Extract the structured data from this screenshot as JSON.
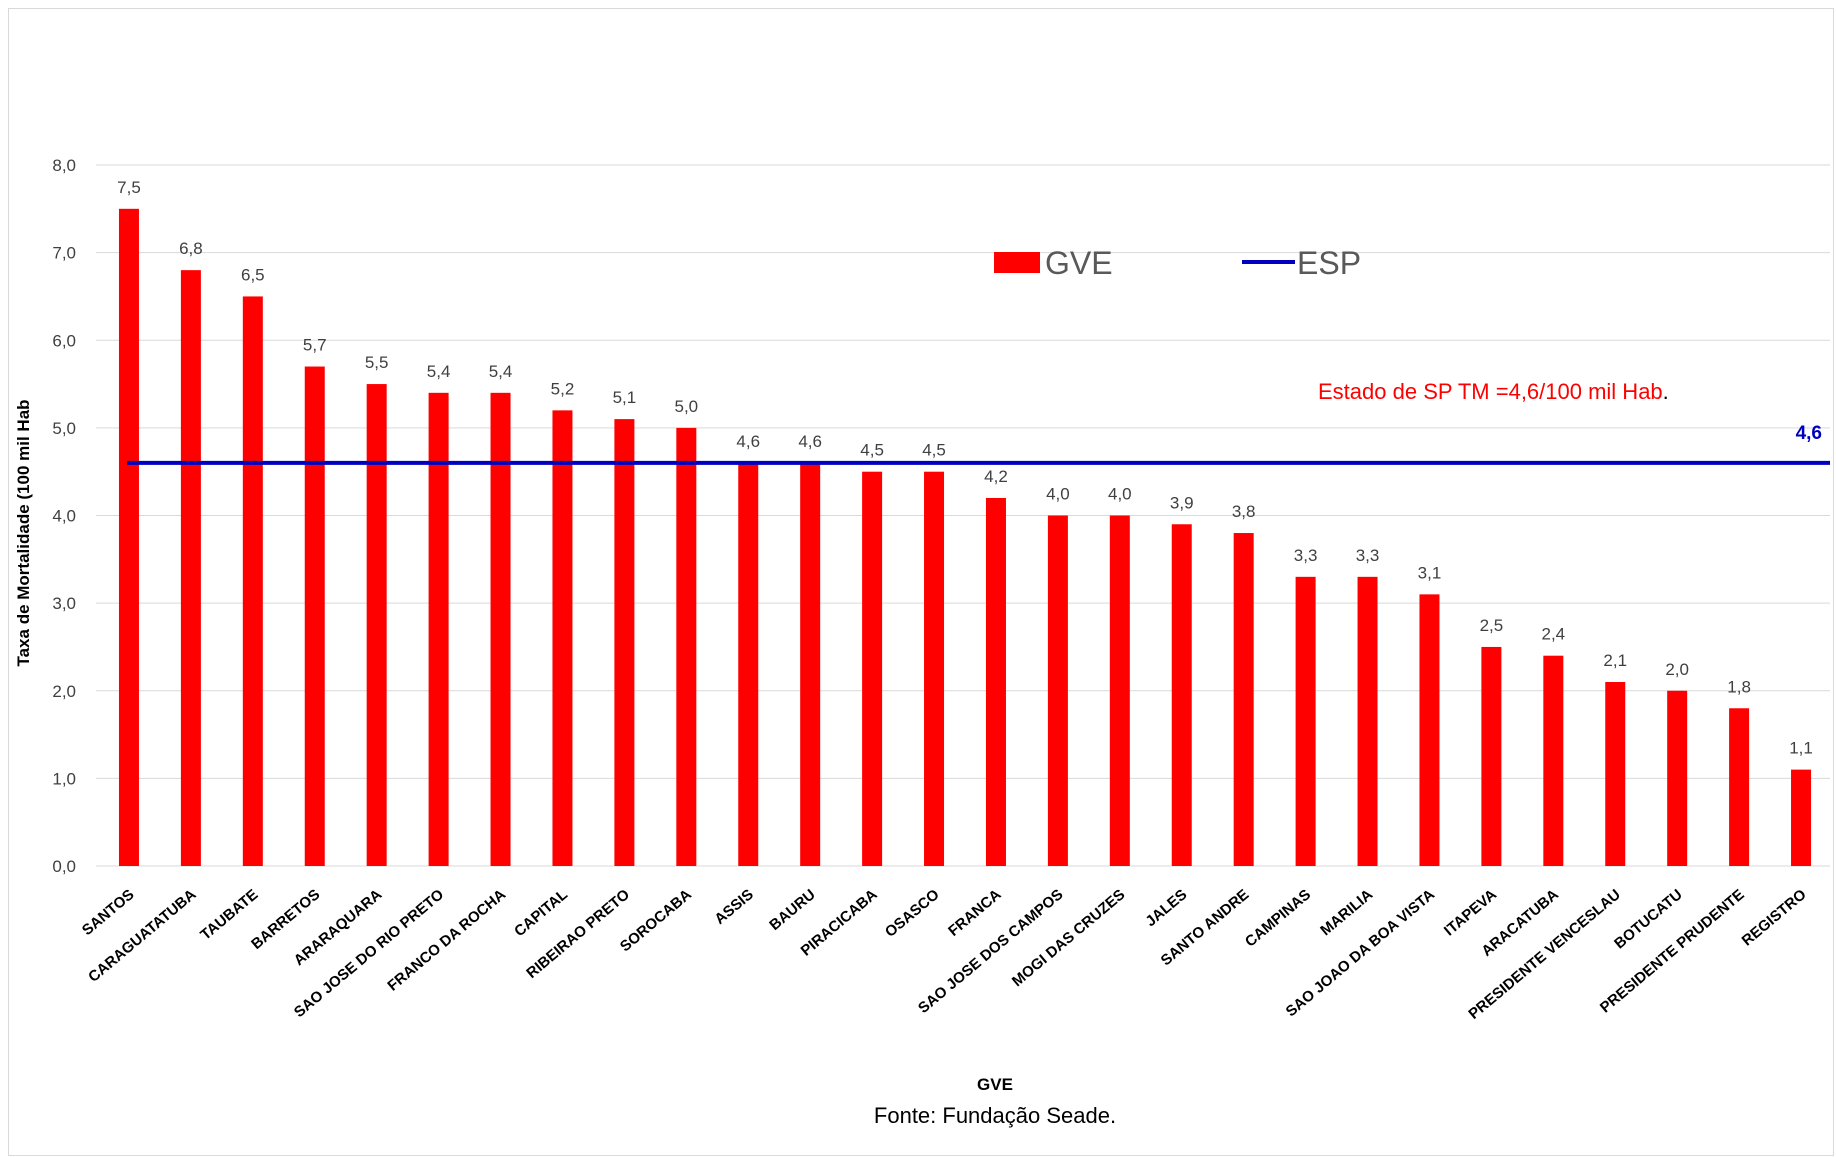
{
  "chart_data": {
    "type": "bar",
    "categories": [
      "SANTOS",
      "CARAGUATATUBA",
      "TAUBATE",
      "BARRETOS",
      "ARARAQUARA",
      "SAO JOSE DO RIO PRETO",
      "FRANCO DA ROCHA",
      "CAPITAL",
      "RIBEIRAO PRETO",
      "SOROCABA",
      "ASSIS",
      "BAURU",
      "PIRACICABA",
      "OSASCO",
      "FRANCA",
      "SAO JOSE DOS CAMPOS",
      "MOGI DAS CRUZES",
      "JALES",
      "SANTO ANDRE",
      "CAMPINAS",
      "MARILIA",
      "SAO JOAO DA BOA VISTA",
      "ITAPEVA",
      "ARACATUBA",
      "PRESIDENTE VENCESLAU",
      "BOTUCATU",
      "PRESIDENTE PRUDENTE",
      "REGISTRO"
    ],
    "series": [
      {
        "name": "GVE",
        "color": "#ff0000",
        "values": [
          7.5,
          6.8,
          6.5,
          5.7,
          5.5,
          5.4,
          5.4,
          5.2,
          5.1,
          5.0,
          4.6,
          4.6,
          4.5,
          4.5,
          4.2,
          4.0,
          4.0,
          3.9,
          3.8,
          3.3,
          3.3,
          3.1,
          2.5,
          2.4,
          2.1,
          2.0,
          1.8,
          1.1
        ],
        "labels": [
          "7,5",
          "6,8",
          "6,5",
          "5,7",
          "5,5",
          "5,4",
          "5,4",
          "5,2",
          "5,1",
          "5,0",
          "4,6",
          "4,6",
          "4,5",
          "4,5",
          "4,2",
          "4,0",
          "4,0",
          "3,9",
          "3,8",
          "3,3",
          "3,3",
          "3,1",
          "2,5",
          "2,4",
          "2,1",
          "2,0",
          "1,8",
          "1,1"
        ]
      },
      {
        "name": "ESP",
        "type": "line",
        "color": "#0000c0",
        "value": 4.6,
        "label": "4,6"
      }
    ],
    "xlabel": "GVE",
    "ylabel": "Taxa de Mortalidade (100 mil Hab",
    "ylim": [
      0,
      8
    ],
    "yticks": [
      "0,0",
      "1,0",
      "2,0",
      "3,0",
      "4,0",
      "5,0",
      "6,0",
      "7,0",
      "8,0"
    ],
    "grid": true,
    "legend_position": "top-center",
    "annotation": "Estado de SP TM =4,6/100 mil Hab",
    "annotation_suffix": ".",
    "source": "Fonte: Fundação Seade."
  }
}
